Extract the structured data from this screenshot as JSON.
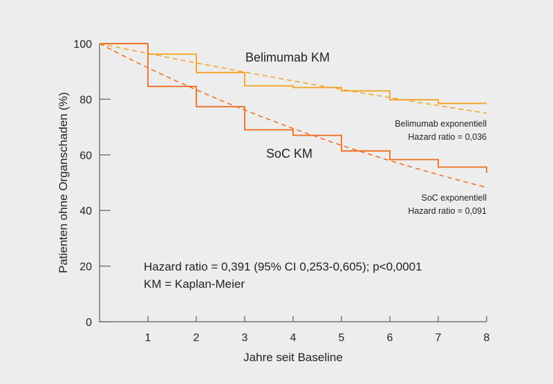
{
  "chart_data": {
    "type": "line",
    "title": "",
    "xlabel": "Jahre seit Baseline",
    "ylabel": "Patienten ohne Organschaden (%)",
    "xlim": [
      0,
      8
    ],
    "ylim": [
      0,
      100
    ],
    "xticks": [
      1,
      2,
      3,
      4,
      5,
      6,
      7,
      8
    ],
    "yticks": [
      0,
      20,
      40,
      60,
      80,
      100
    ],
    "grid": false,
    "series": [
      {
        "name": "Belimumab KM",
        "style": "step",
        "color": "#f5a01e",
        "x": [
          0,
          1,
          2,
          3,
          4,
          5,
          6,
          7,
          8
        ],
        "y": [
          100,
          96.2,
          89.6,
          84.8,
          84.2,
          83.0,
          79.8,
          78.5,
          78.5
        ]
      },
      {
        "name": "SoC KM",
        "style": "step",
        "color": "#ee6a1c",
        "x": [
          0,
          1,
          2,
          3,
          4,
          5,
          6,
          7,
          8
        ],
        "y": [
          100,
          84.6,
          77.3,
          69.0,
          67.0,
          61.4,
          58.3,
          55.6,
          53.5
        ]
      },
      {
        "name": "Belimumab exponentiell",
        "style": "dashed",
        "color": "#f5a01e",
        "rate": 0.036
      },
      {
        "name": "SoC exponentiell",
        "style": "dashed",
        "color": "#ee6a1c",
        "rate": 0.091
      }
    ],
    "annotations": {
      "belimumab_km": "Belimumab KM",
      "soc_km": "SoC KM",
      "belimumab_exp": "Belimumab exponentiell",
      "belimumab_hr": "Hazard ratio = 0,036",
      "soc_exp": "SoC exponentiell",
      "soc_hr": "Hazard ratio = 0,091",
      "overall_hr": "Hazard ratio = 0,391 (95% CI 0,253-0,605); p<0,0001",
      "km_note": "KM = Kaplan-Meier"
    }
  }
}
